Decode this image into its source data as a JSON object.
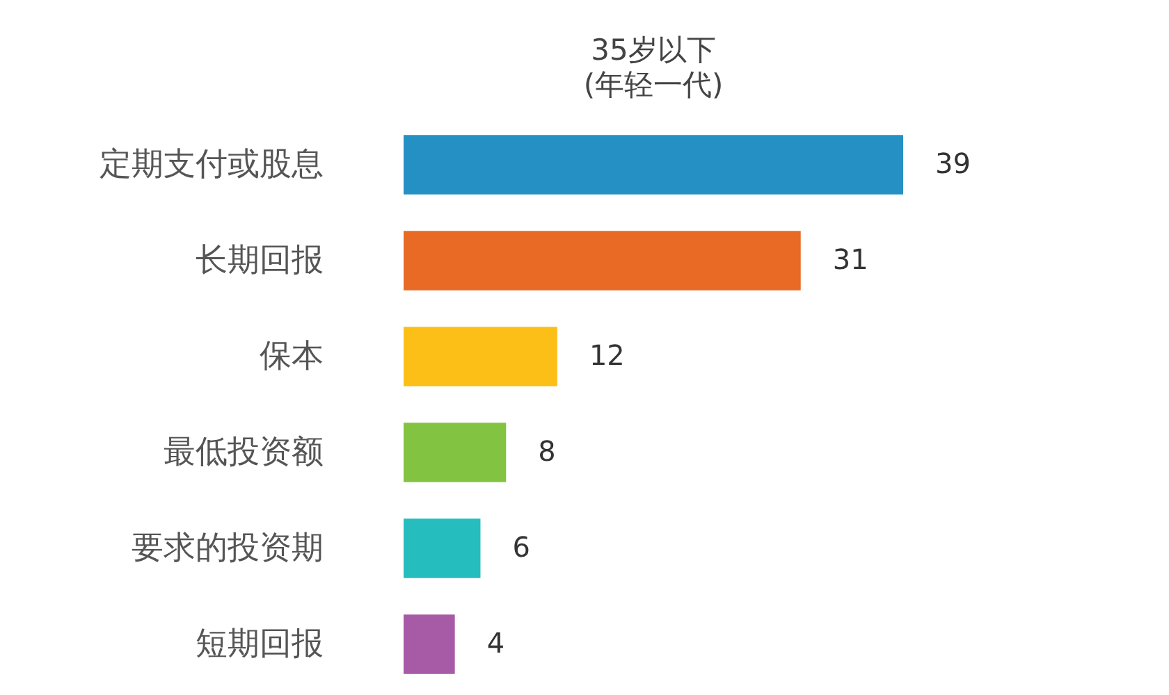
{
  "chart_data": {
    "type": "bar",
    "orientation": "horizontal",
    "title": "35岁以下\n(年轻一代)",
    "categories": [
      "定期支付或股息",
      "长期回报",
      "保本",
      "最低投资额",
      "要求的投资期",
      "短期回报"
    ],
    "values": [
      39,
      31,
      12,
      8,
      6,
      4
    ],
    "colors": [
      "#2590c4",
      "#e86a24",
      "#fbbf18",
      "#82c341",
      "#25bdbd",
      "#a75aa5"
    ],
    "data_labels": true,
    "tick_labels": "y"
  }
}
